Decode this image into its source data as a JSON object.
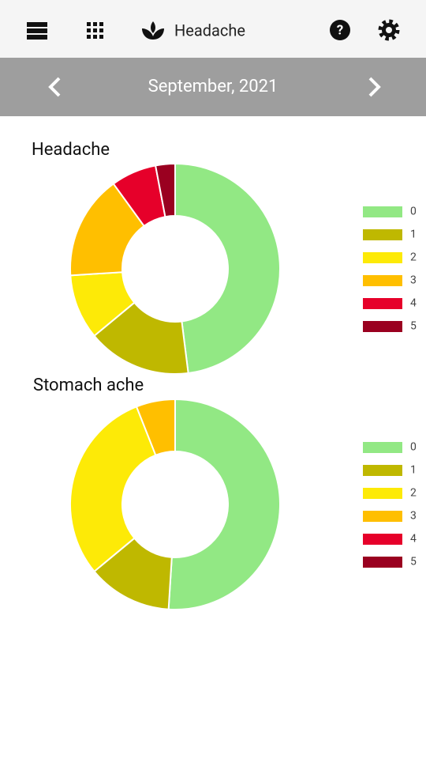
{
  "header": {
    "title": "Headache"
  },
  "nav": {
    "month": "September, 2021"
  },
  "chart_data": [
    {
      "type": "donut",
      "title": "Headache",
      "categories": [
        "0",
        "1",
        "2",
        "3",
        "4",
        "5"
      ],
      "values": [
        48,
        16,
        10,
        16,
        7,
        3
      ],
      "colors": [
        "#92e884",
        "#bfb800",
        "#fdea07",
        "#ffbf00",
        "#e6002a",
        "#9a0020"
      ]
    },
    {
      "type": "donut",
      "title": "Stomach ache",
      "categories": [
        "0",
        "1",
        "2",
        "3",
        "4",
        "5"
      ],
      "values": [
        51,
        13,
        30,
        6,
        0,
        0
      ],
      "colors": [
        "#92e884",
        "#bfb800",
        "#fdea07",
        "#ffbf00",
        "#e6002a",
        "#9a0020"
      ]
    }
  ]
}
